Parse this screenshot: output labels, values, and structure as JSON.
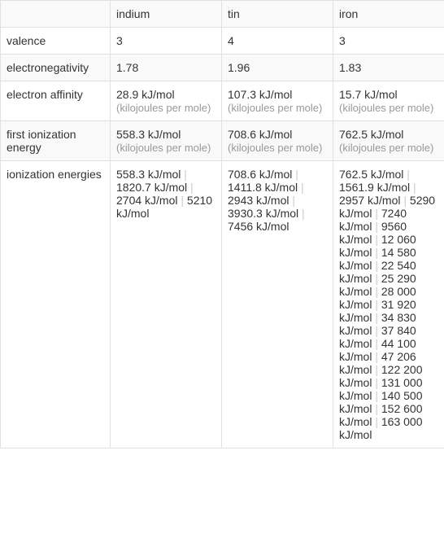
{
  "headers": [
    "indium",
    "tin",
    "iron"
  ],
  "rows": [
    {
      "label": "valence",
      "values": [
        "3",
        "4",
        "3"
      ]
    },
    {
      "label": "electronegativity",
      "values": [
        "1.78",
        "1.96",
        "1.83"
      ]
    },
    {
      "label": "electron affinity",
      "values_with_unit": [
        {
          "value": "28.9 kJ/mol",
          "unit": "(kilojoules per mole)"
        },
        {
          "value": "107.3 kJ/mol",
          "unit": "(kilojoules per mole)"
        },
        {
          "value": "15.7 kJ/mol",
          "unit": "(kilojoules per mole)"
        }
      ]
    },
    {
      "label": "first ionization energy",
      "values_with_unit": [
        {
          "value": "558.3 kJ/mol",
          "unit": "(kilojoules per mole)"
        },
        {
          "value": "708.6 kJ/mol",
          "unit": "(kilojoules per mole)"
        },
        {
          "value": "762.5 kJ/mol",
          "unit": "(kilojoules per mole)"
        }
      ]
    },
    {
      "label": "ionization energies",
      "list_values": [
        [
          "558.3 kJ/mol",
          "1820.7 kJ/mol",
          "2704 kJ/mol",
          "5210 kJ/mol"
        ],
        [
          "708.6 kJ/mol",
          "1411.8 kJ/mol",
          "2943 kJ/mol",
          "3930.3 kJ/mol",
          "7456 kJ/mol"
        ],
        [
          "762.5 kJ/mol",
          "1561.9 kJ/mol",
          "2957 kJ/mol",
          "5290 kJ/mol",
          "7240 kJ/mol",
          "9560 kJ/mol",
          "12 060 kJ/mol",
          "14 580 kJ/mol",
          "22 540 kJ/mol",
          "25 290 kJ/mol",
          "28 000 kJ/mol",
          "31 920 kJ/mol",
          "34 830 kJ/mol",
          "37 840 kJ/mol",
          "44 100 kJ/mol",
          "47 206 kJ/mol",
          "122 200 kJ/mol",
          "131 000 kJ/mol",
          "140 500 kJ/mol",
          "152 600 kJ/mol",
          "163 000 kJ/mol"
        ]
      ]
    }
  ],
  "separator": "   |   ",
  "styling": {
    "border_color": "#e0e0e0",
    "alt_row_bg": "#f9f9f9",
    "unit_text_color": "#999999",
    "separator_color": "#cccccc",
    "font_size": 14,
    "label_col_width": 135,
    "data_col_width": 137
  }
}
